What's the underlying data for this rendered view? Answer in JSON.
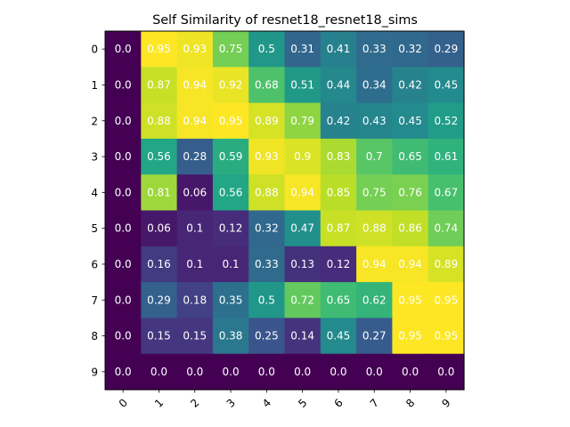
{
  "chart_data": {
    "type": "heatmap",
    "title": "Self Similarity of resnet18_resnet18_sims",
    "x_ticks": [
      "0",
      "1",
      "2",
      "3",
      "4",
      "5",
      "6",
      "7",
      "8",
      "9"
    ],
    "y_ticks": [
      "0",
      "1",
      "2",
      "3",
      "4",
      "5",
      "6",
      "7",
      "8",
      "9"
    ],
    "colormap": "viridis",
    "value_range": [
      0,
      0.95
    ],
    "grid": false,
    "values": [
      [
        0.0,
        0.95,
        0.93,
        0.75,
        0.5,
        0.31,
        0.41,
        0.33,
        0.32,
        0.29
      ],
      [
        0.0,
        0.87,
        0.94,
        0.92,
        0.68,
        0.51,
        0.44,
        0.34,
        0.42,
        0.45
      ],
      [
        0.0,
        0.88,
        0.94,
        0.95,
        0.89,
        0.79,
        0.42,
        0.43,
        0.45,
        0.52
      ],
      [
        0.0,
        0.56,
        0.28,
        0.59,
        0.93,
        0.9,
        0.83,
        0.7,
        0.65,
        0.61
      ],
      [
        0.0,
        0.81,
        0.06,
        0.56,
        0.88,
        0.94,
        0.85,
        0.75,
        0.76,
        0.67
      ],
      [
        0.0,
        0.06,
        0.1,
        0.12,
        0.32,
        0.47,
        0.87,
        0.88,
        0.86,
        0.74
      ],
      [
        0.0,
        0.16,
        0.1,
        0.1,
        0.33,
        0.13,
        0.12,
        0.94,
        0.94,
        0.89
      ],
      [
        0.0,
        0.29,
        0.18,
        0.35,
        0.5,
        0.72,
        0.65,
        0.62,
        0.95,
        0.95
      ],
      [
        0.0,
        0.15,
        0.15,
        0.38,
        0.25,
        0.14,
        0.45,
        0.27,
        0.95,
        0.95
      ],
      [
        0.0,
        0.0,
        0.0,
        0.0,
        0.0,
        0.0,
        0.0,
        0.0,
        0.0,
        0.0
      ]
    ],
    "labels": [
      [
        "0.0",
        "0.95",
        "0.93",
        "0.75",
        "0.5",
        "0.31",
        "0.41",
        "0.33",
        "0.32",
        "0.29"
      ],
      [
        "0.0",
        "0.87",
        "0.94",
        "0.92",
        "0.68",
        "0.51",
        "0.44",
        "0.34",
        "0.42",
        "0.45"
      ],
      [
        "0.0",
        "0.88",
        "0.94",
        "0.95",
        "0.89",
        "0.79",
        "0.42",
        "0.43",
        "0.45",
        "0.52"
      ],
      [
        "0.0",
        "0.56",
        "0.28",
        "0.59",
        "0.93",
        "0.9",
        "0.83",
        "0.7",
        "0.65",
        "0.61"
      ],
      [
        "0.0",
        "0.81",
        "0.06",
        "0.56",
        "0.88",
        "0.94",
        "0.85",
        "0.75",
        "0.76",
        "0.67"
      ],
      [
        "0.0",
        "0.06",
        "0.1",
        "0.12",
        "0.32",
        "0.47",
        "0.87",
        "0.88",
        "0.86",
        "0.74"
      ],
      [
        "0.0",
        "0.16",
        "0.1",
        "0.1",
        "0.33",
        "0.13",
        "0.12",
        "0.94",
        "0.94",
        "0.89"
      ],
      [
        "0.0",
        "0.29",
        "0.18",
        "0.35",
        "0.5",
        "0.72",
        "0.65",
        "0.62",
        "0.95",
        "0.95"
      ],
      [
        "0.0",
        "0.15",
        "0.15",
        "0.38",
        "0.25",
        "0.14",
        "0.45",
        "0.27",
        "0.95",
        "0.95"
      ],
      [
        "0.0",
        "0.0",
        "0.0",
        "0.0",
        "0.0",
        "0.0",
        "0.0",
        "0.0",
        "0.0",
        "0.0"
      ]
    ],
    "cell_label_color": "#ffffff"
  }
}
